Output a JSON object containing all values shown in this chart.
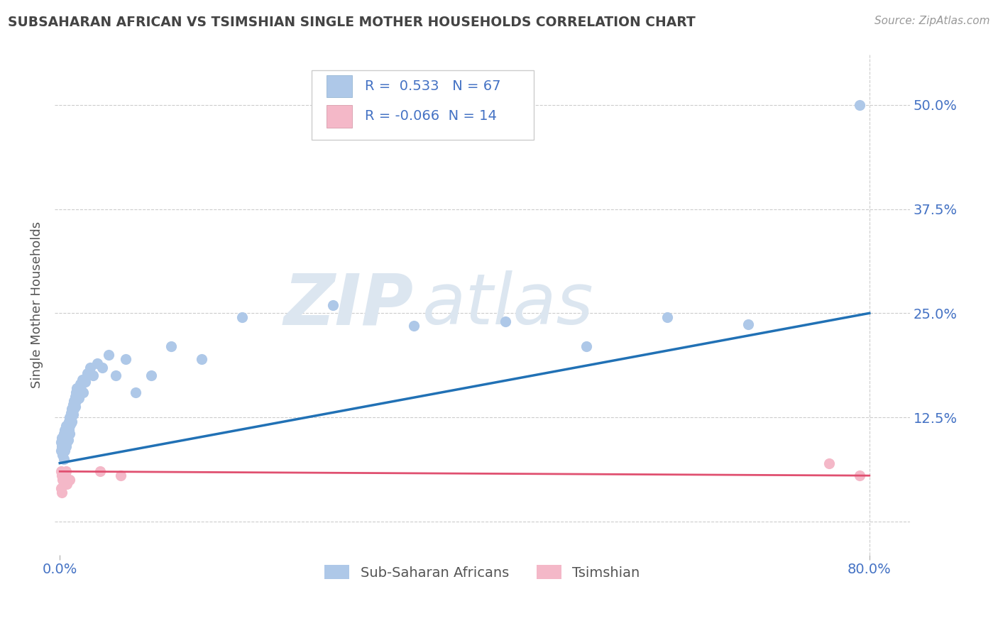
{
  "title": "SUBSAHARAN AFRICAN VS TSIMSHIAN SINGLE MOTHER HOUSEHOLDS CORRELATION CHART",
  "source": "Source: ZipAtlas.com",
  "ylabel": "Single Mother Households",
  "yticks": [
    0.0,
    0.125,
    0.25,
    0.375,
    0.5
  ],
  "ytick_labels": [
    "",
    "12.5%",
    "25.0%",
    "37.5%",
    "50.0%"
  ],
  "xlim": [
    -0.005,
    0.84
  ],
  "ylim": [
    -0.04,
    0.56
  ],
  "R_blue": 0.533,
  "N_blue": 67,
  "R_pink": -0.066,
  "N_pink": 14,
  "blue_color": "#aec8e8",
  "pink_color": "#f4b8c8",
  "blue_line_color": "#2171b5",
  "pink_line_color": "#e05070",
  "title_color": "#444444",
  "source_color": "#999999",
  "axis_label_color": "#4472c4",
  "grid_color": "#cccccc",
  "blue_scatter_x": [
    0.001,
    0.001,
    0.002,
    0.002,
    0.003,
    0.003,
    0.003,
    0.004,
    0.004,
    0.004,
    0.005,
    0.005,
    0.005,
    0.006,
    0.006,
    0.006,
    0.007,
    0.007,
    0.007,
    0.008,
    0.008,
    0.008,
    0.009,
    0.009,
    0.01,
    0.01,
    0.01,
    0.011,
    0.011,
    0.012,
    0.012,
    0.013,
    0.013,
    0.014,
    0.014,
    0.015,
    0.015,
    0.016,
    0.016,
    0.017,
    0.018,
    0.019,
    0.02,
    0.021,
    0.022,
    0.023,
    0.025,
    0.027,
    0.03,
    0.033,
    0.037,
    0.042,
    0.048,
    0.055,
    0.065,
    0.075,
    0.09,
    0.11,
    0.14,
    0.18,
    0.27,
    0.35,
    0.44,
    0.52,
    0.6,
    0.68,
    0.79
  ],
  "blue_scatter_y": [
    0.095,
    0.085,
    0.1,
    0.09,
    0.1,
    0.095,
    0.08,
    0.105,
    0.09,
    0.075,
    0.11,
    0.095,
    0.085,
    0.115,
    0.1,
    0.09,
    0.11,
    0.105,
    0.095,
    0.115,
    0.108,
    0.098,
    0.12,
    0.11,
    0.125,
    0.115,
    0.105,
    0.13,
    0.118,
    0.135,
    0.12,
    0.14,
    0.128,
    0.145,
    0.135,
    0.15,
    0.138,
    0.155,
    0.145,
    0.16,
    0.155,
    0.148,
    0.165,
    0.158,
    0.17,
    0.155,
    0.168,
    0.178,
    0.185,
    0.175,
    0.19,
    0.185,
    0.2,
    0.175,
    0.195,
    0.155,
    0.175,
    0.21,
    0.195,
    0.245,
    0.26,
    0.235,
    0.24,
    0.21,
    0.245,
    0.237,
    0.5
  ],
  "pink_scatter_x": [
    0.001,
    0.001,
    0.002,
    0.002,
    0.003,
    0.004,
    0.005,
    0.006,
    0.007,
    0.01,
    0.04,
    0.06,
    0.76,
    0.79
  ],
  "pink_scatter_y": [
    0.06,
    0.04,
    0.055,
    0.035,
    0.05,
    0.045,
    0.055,
    0.06,
    0.045,
    0.05,
    0.06,
    0.055,
    0.07,
    0.055
  ],
  "blue_trendline_x": [
    0.0,
    0.8
  ],
  "blue_trendline_y": [
    0.07,
    0.25
  ],
  "pink_trendline_x": [
    0.0,
    0.8
  ],
  "pink_trendline_y": [
    0.06,
    0.055
  ]
}
